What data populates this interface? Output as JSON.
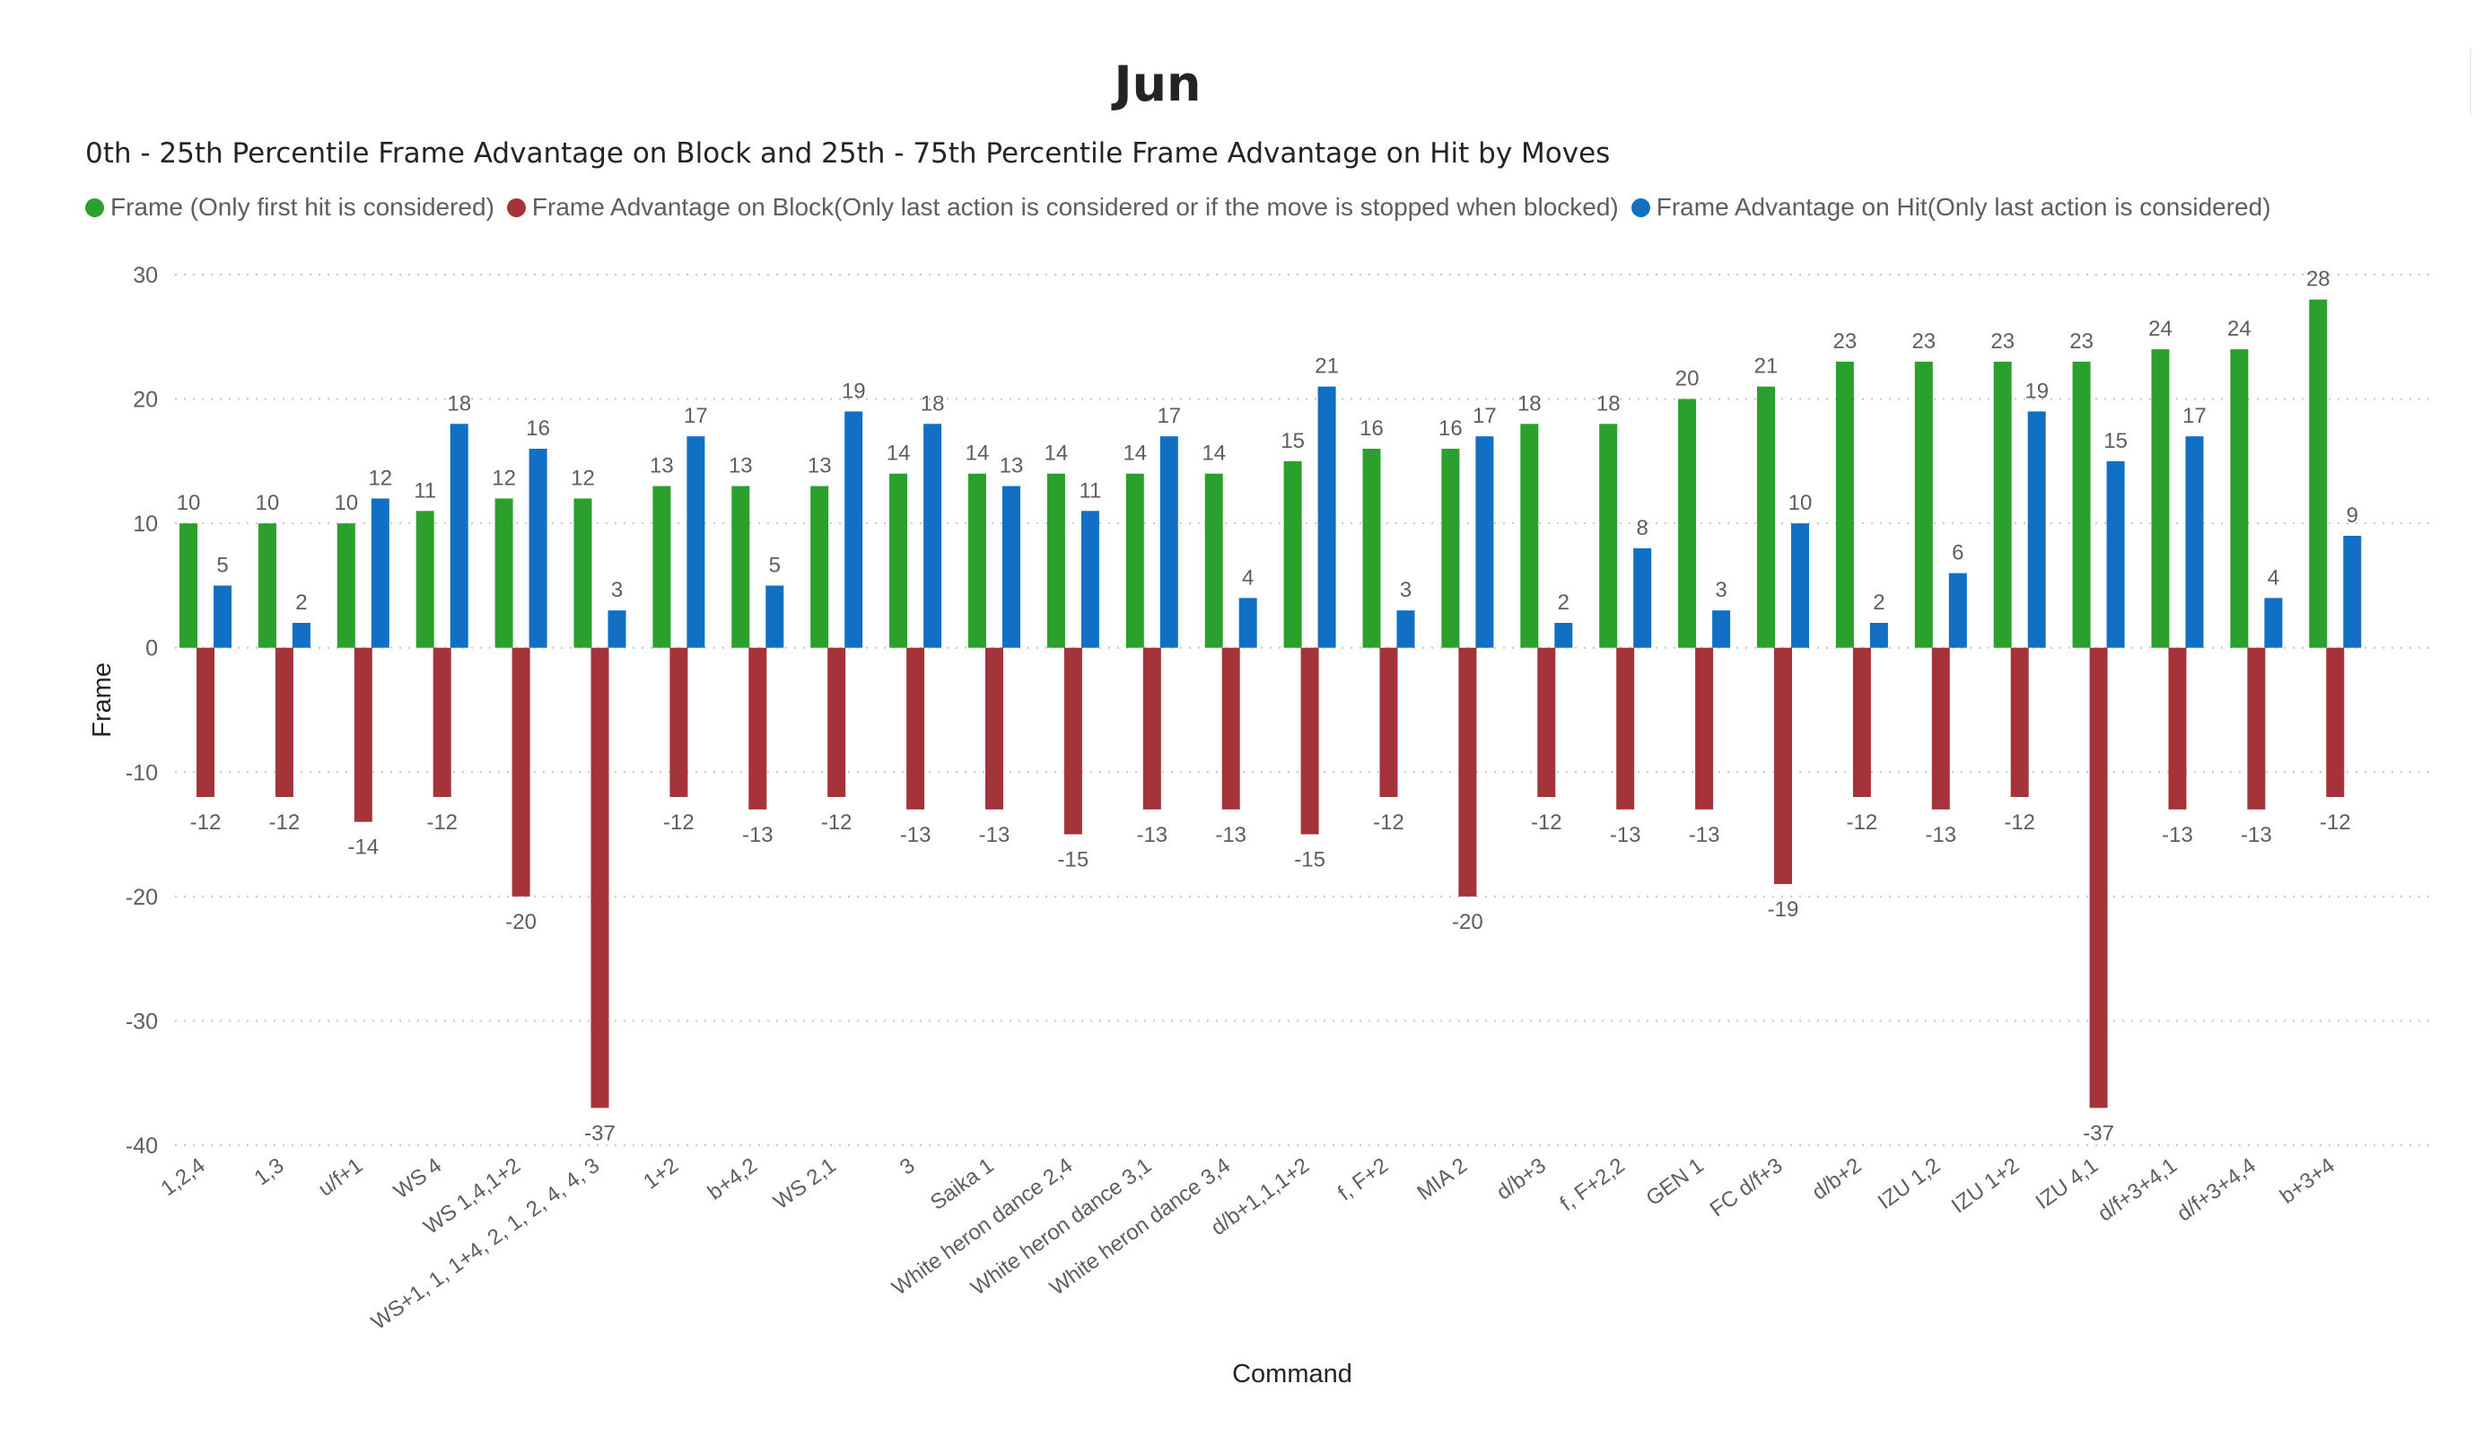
{
  "chart_data": {
    "type": "bar",
    "title": "Jun",
    "subtitle": "0th - 25th Percentile Frame Advantage on Block and 25th - 75th Percentile Frame Advantage on Hit by Moves",
    "xlabel": "Command",
    "ylabel": "Frame",
    "ylim": [
      -40,
      30
    ],
    "yticks": [
      30,
      20,
      10,
      0,
      -10,
      -20,
      -30,
      -40
    ],
    "grid": true,
    "legend_position": "top-left",
    "categories": [
      "1,2,4",
      "1,3",
      "u/f+1",
      "WS 4",
      "WS 1,4,1+2",
      "WS+1, 1, 1+4, 2, 1, 2, 4, 4, 3",
      "1+2",
      "b+4,2",
      "WS 2,1",
      "3",
      "Saika 1",
      "White heron dance 2,4",
      "White heron dance 3,1",
      "White heron dance 3,4",
      "d/b+1,1,1+2",
      "f, F+2",
      "MIA 2",
      "d/b+3",
      "f, F+2,2",
      "GEN 1",
      "FC d/f+3",
      "d/b+2",
      "IZU 1,2",
      "IZU 1+2",
      "IZU 4,1",
      "d/f+3+4,1",
      "d/f+3+4,4",
      "b+3+4"
    ],
    "series": [
      {
        "name": "Frame (Only first hit is considered)",
        "color": "#2ca02c",
        "values": [
          10,
          10,
          10,
          11,
          12,
          12,
          13,
          13,
          13,
          14,
          14,
          14,
          14,
          14,
          15,
          16,
          16,
          18,
          18,
          20,
          21,
          23,
          23,
          23,
          23,
          24,
          24,
          28
        ]
      },
      {
        "name": "Frame Advantage on Block(Only last action is considered or if the move is stopped when blocked)",
        "color": "#a4343a",
        "values": [
          -12,
          -12,
          -14,
          -12,
          -20,
          -37,
          -12,
          -13,
          -12,
          -13,
          -13,
          -15,
          -13,
          -13,
          -15,
          -12,
          -20,
          -12,
          -13,
          -13,
          -19,
          -12,
          -13,
          -12,
          -37,
          -13,
          -13,
          -12
        ]
      },
      {
        "name": "Frame Advantage on Hit(Only last action is considered)",
        "color": "#1170c4",
        "values": [
          5,
          2,
          12,
          18,
          16,
          3,
          17,
          5,
          19,
          18,
          13,
          11,
          17,
          4,
          21,
          3,
          17,
          2,
          8,
          3,
          10,
          2,
          6,
          19,
          15,
          17,
          4,
          9
        ]
      }
    ]
  }
}
